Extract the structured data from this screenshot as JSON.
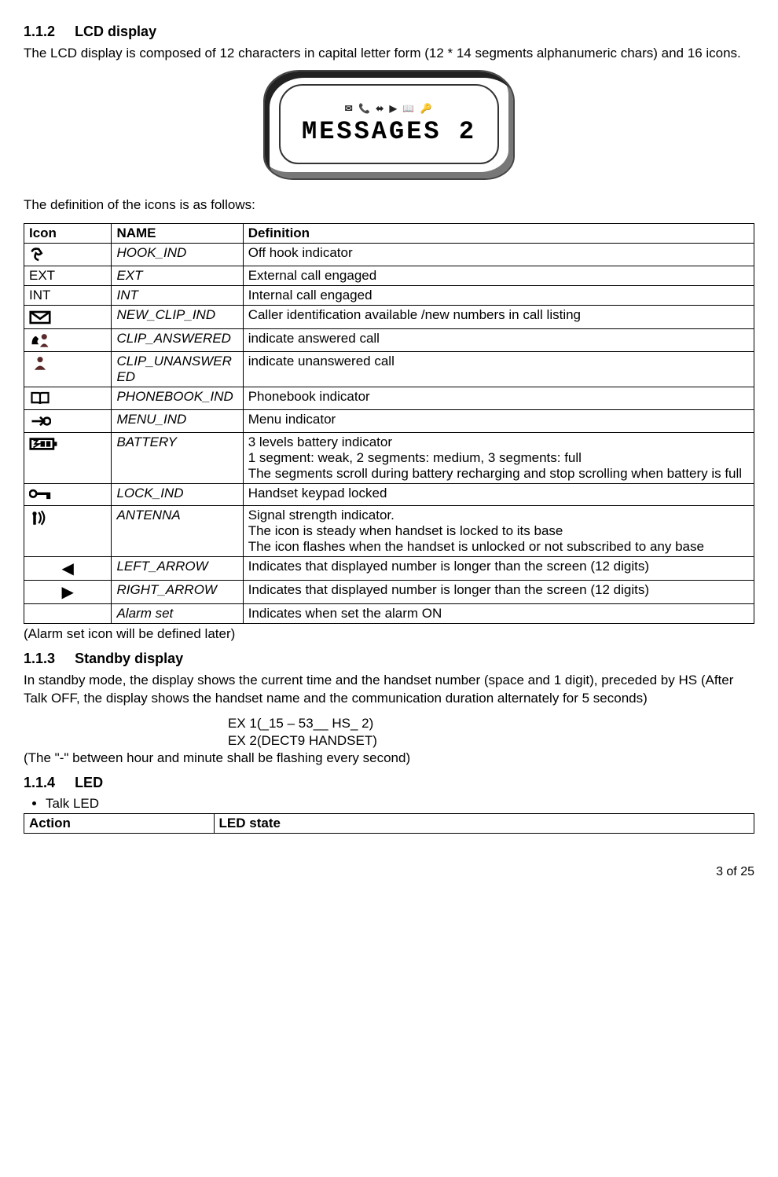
{
  "section_112": {
    "heading_num": "1.1.2",
    "heading_title": "LCD display",
    "intro": "The LCD display is composed of 12 characters in capital letter form (12 * 14 segments alphanumeric chars) and 16 icons.",
    "lcd_icons_row": "✉ 📞 ⬌ ▶ 📖 🔑",
    "lcd_text": "MESSAGES  2",
    "icons_def_intro": "The definition of the icons is as follows:"
  },
  "icon_table": {
    "headers": {
      "icon": "Icon",
      "name": "NAME",
      "def": "Definition"
    },
    "rows": [
      {
        "icon_text": "",
        "icon_type": "hook",
        "name": "HOOK_IND",
        "def": "Off hook indicator"
      },
      {
        "icon_text": "EXT",
        "icon_type": "text",
        "name": "EXT",
        "def": "External call engaged"
      },
      {
        "icon_text": "INT",
        "icon_type": "text",
        "name": "INT",
        "def": "Internal call engaged"
      },
      {
        "icon_text": "",
        "icon_type": "envelope",
        "name": "NEW_CLIP_IND",
        "def": "Caller identification available /new numbers in call listing"
      },
      {
        "icon_text": "",
        "icon_type": "clip-answered",
        "name": "CLIP_ANSWERED",
        "def": "indicate answered call"
      },
      {
        "icon_text": "",
        "icon_type": "clip-unanswered",
        "name": "CLIP_UNANSWERED",
        "def": "indicate unanswered call"
      },
      {
        "icon_text": "",
        "icon_type": "phonebook",
        "name": "PHONEBOOK_IND",
        "def": "Phonebook indicator"
      },
      {
        "icon_text": "",
        "icon_type": "menu",
        "name": "MENU_IND",
        "def": "Menu indicator"
      },
      {
        "icon_text": "",
        "icon_type": "battery",
        "name": "BATTERY",
        "def": "3 levels battery indicator\n1 segment:  weak, 2 segments: medium, 3 segments: full\nThe segments scroll during battery recharging and stop scrolling when battery is full"
      },
      {
        "icon_text": "",
        "icon_type": "lock",
        "name": "LOCK_IND",
        "def": "Handset keypad locked"
      },
      {
        "icon_text": "",
        "icon_type": "antenna",
        "name": "ANTENNA",
        "def": "Signal strength indicator.\nThe icon is steady when handset is locked to its base\nThe icon flashes when the handset is unlocked or not subscribed to any base"
      },
      {
        "icon_text": "◀",
        "icon_type": "arrow",
        "name": "LEFT_ARROW",
        "def": "Indicates that displayed number is longer than the screen (12 digits)"
      },
      {
        "icon_text": "▶",
        "icon_type": "arrow",
        "name": "RIGHT_ARROW",
        "def": "Indicates that displayed number is longer than the screen (12 digits)"
      },
      {
        "icon_text": "",
        "icon_type": "blank",
        "name": "Alarm set",
        "def": "Indicates when set the alarm ON"
      }
    ],
    "footnote": "(Alarm set icon will be defined later)"
  },
  "section_113": {
    "heading_num": "1.1.3",
    "heading_title": "Standby display",
    "para": "In standby mode, the display shows the current time and the handset number (space and 1 digit), preceded by HS (After Talk OFF, the display shows the handset name and the communication duration alternately for 5 seconds)",
    "ex1": "EX 1(_15 – 53__ HS_ 2)",
    "ex2": "EX 2(DECT9 HANDSET)",
    "note": "(The \"-\" between hour and minute shall be flashing every second)"
  },
  "section_114": {
    "heading_num": "1.1.4",
    "heading_title": "LED",
    "bullet": "Talk LED",
    "led_headers": {
      "action": "Action",
      "state": "LED state"
    }
  },
  "footer": "3 of 25"
}
